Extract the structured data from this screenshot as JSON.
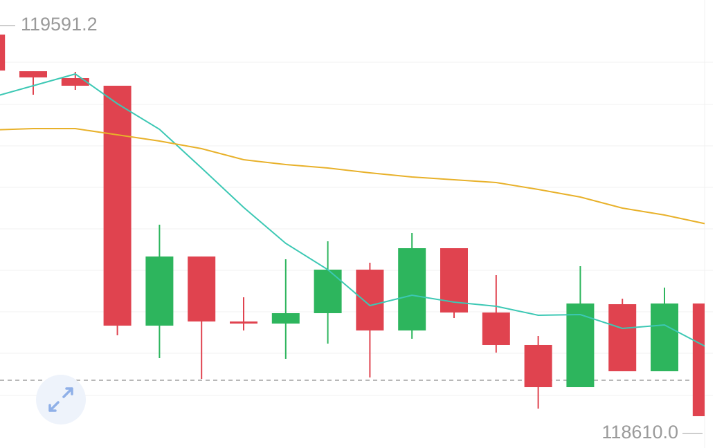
{
  "chart_data": {
    "type": "candlestick",
    "categories": [
      null,
      null,
      null,
      null,
      null,
      null,
      null,
      null,
      null,
      null,
      null,
      null,
      null,
      null,
      null,
      null,
      null,
      null
    ],
    "open": [
      119569.6,
      119481.4,
      119464.8,
      119446.5,
      118869.4,
      119035.7,
      118879.4,
      118874.4,
      118899.4,
      119004.1,
      118857.8,
      119055.7,
      118901.0,
      118822.9,
      118721.4,
      118921.0,
      118759.7,
      118922.7
    ],
    "high": [
      119569.6,
      119481.4,
      119479.8,
      119446.5,
      119112.2,
      119035.7,
      118937.6,
      119029.1,
      119072.3,
      119020.8,
      119092.3,
      119055.7,
      118990.8,
      118844.5,
      119012.5,
      118934.3,
      118960.9,
      118922.7
    ],
    "low": [
      119483.1,
      119424.9,
      119436.5,
      118846.2,
      118791.3,
      118741.4,
      118857.8,
      118789.6,
      118826.2,
      118744.7,
      118837.8,
      118887.7,
      118804.6,
      118669.9,
      118721.4,
      118759.7,
      118759.7,
      118651.6
    ],
    "close": [
      119483.1,
      119466.5,
      119446.5,
      118869.4,
      119035.7,
      118879.4,
      118874.4,
      118899.4,
      119004.1,
      118857.8,
      119055.7,
      118901.0,
      118822.9,
      118721.4,
      118922.7,
      118759.7,
      118922.7,
      118651.6
    ],
    "up_color": "#2db55d",
    "down_color": "#e0434f",
    "series": [
      {
        "color": "#3cc8b4",
        "values": [
          119418.2,
          119446.5,
          119474.8,
          119403.3,
          119341.7,
          119248.6,
          119153.8,
          119067.3,
          119004.1,
          118917.7,
          118942.6,
          118926.0,
          118916.0,
          118894.4,
          118896.0,
          118862.8,
          118871.1,
          118817.9
        ]
      },
      {
        "color": "#e8b12a",
        "values": [
          119340.1,
          119343.4,
          119343.4,
          119328.4,
          119313.5,
          119295.2,
          119268.6,
          119256.9,
          119248.6,
          119237.0,
          119227.0,
          119220.3,
          119213.7,
          119197.1,
          119178.8,
          119152.2,
          119135.5,
          119113.9
        ]
      }
    ],
    "last_price": 118738.1,
    "ylim": [
      118610.0,
      119591.2
    ],
    "yticks": [
      {
        "value": 119591.2,
        "label": "119591.2"
      },
      {
        "value": 118610.0,
        "label": "118610.0"
      }
    ]
  }
}
